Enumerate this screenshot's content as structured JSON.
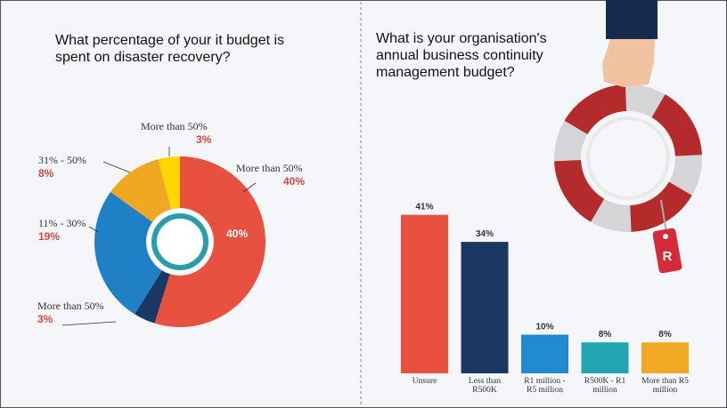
{
  "chart_data": [
    {
      "type": "donut",
      "title": "What percentage of your it budget is spent on disaster recovery?",
      "categories": [
        "More than 50%",
        "More than 50%",
        "11% - 30%",
        "31% - 50%",
        "More than 50%"
      ],
      "values": [
        40,
        3,
        19,
        8,
        3
      ],
      "value_labels": [
        "40%",
        "3%",
        "19%",
        "8%",
        "3%"
      ],
      "colors": [
        "#e8503f",
        "#1b3864",
        "#2080c6",
        "#f0a822",
        "#ffd600"
      ]
    },
    {
      "type": "bar",
      "title": "What is your organisation's annual business continuity management budget?",
      "categories": [
        "Unsure",
        "Less than R500K",
        "R1 million - R5 million",
        "R500K - R1 million",
        "More than R5 million"
      ],
      "values": [
        41,
        34,
        10,
        8,
        8
      ],
      "value_labels": [
        "41%",
        "34%",
        "10%",
        "8%",
        "8%"
      ],
      "colors": [
        "#e8503f",
        "#1b3864",
        "#2089d0",
        "#22a5b2",
        "#f1a923"
      ]
    }
  ],
  "tag_text": "R"
}
